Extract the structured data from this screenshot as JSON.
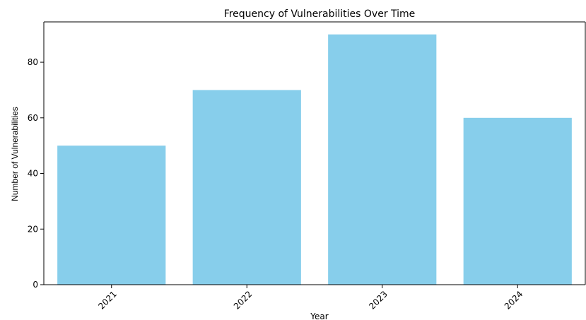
{
  "chart_data": {
    "type": "bar",
    "title": "Frequency of Vulnerabilities Over Time",
    "xlabel": "Year",
    "ylabel": "Number of Vulnerabilities",
    "categories": [
      "2021",
      "2022",
      "2023",
      "2024"
    ],
    "values": [
      50,
      70,
      90,
      60
    ],
    "ylim": [
      0,
      94.5
    ],
    "yticks": [
      0,
      20,
      40,
      60,
      80
    ],
    "grid": false,
    "legend": "none",
    "bar_color": "#87CEEB",
    "xtick_rotation_deg": 45
  }
}
